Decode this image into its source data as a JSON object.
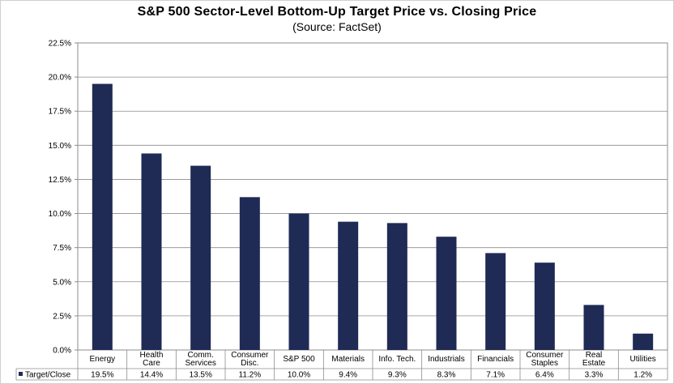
{
  "chart_data": {
    "type": "bar",
    "title": "S&P 500 Sector-Level Bottom-Up Target Price vs. Closing Price",
    "subtitle": "(Source: FactSet)",
    "categories": [
      [
        "Energy"
      ],
      [
        "Health",
        "Care"
      ],
      [
        "Comm.",
        "Services"
      ],
      [
        "Consumer",
        "Disc."
      ],
      [
        "S&P 500"
      ],
      [
        "Materials"
      ],
      [
        "Info. Tech."
      ],
      [
        "Industrials"
      ],
      [
        "Financials"
      ],
      [
        "Consumer",
        "Staples"
      ],
      [
        "Real",
        "Estate"
      ],
      [
        "Utilities"
      ]
    ],
    "series": [
      {
        "name": "Target/Close",
        "values": [
          19.5,
          14.4,
          13.5,
          11.2,
          10.0,
          9.4,
          9.3,
          8.3,
          7.1,
          6.4,
          3.3,
          1.2
        ],
        "labels": [
          "19.5%",
          "14.4%",
          "13.5%",
          "11.2%",
          "10.0%",
          "9.4%",
          "9.3%",
          "8.3%",
          "7.1%",
          "6.4%",
          "3.3%",
          "1.2%"
        ]
      }
    ],
    "y_ticks": [
      "0.0%",
      "2.5%",
      "5.0%",
      "7.5%",
      "10.0%",
      "12.5%",
      "15.0%",
      "17.5%",
      "20.0%",
      "22.5%"
    ],
    "ylim": [
      0,
      22.5
    ],
    "grid": true,
    "legend_position": "data table row",
    "bar_color": "#1f2a55"
  }
}
